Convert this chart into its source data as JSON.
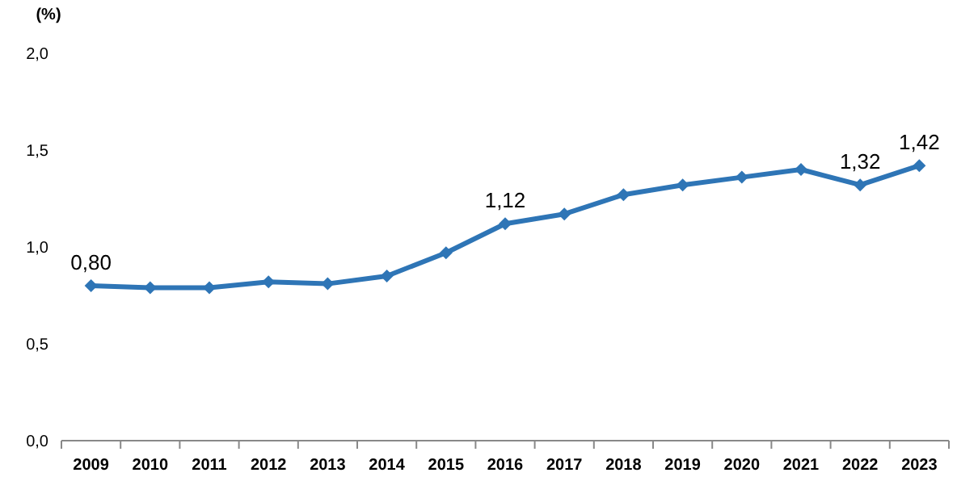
{
  "chart_data": {
    "type": "line",
    "ylabel": "(%)",
    "categories": [
      "2009",
      "2010",
      "2011",
      "2012",
      "2013",
      "2014",
      "2015",
      "2016",
      "2017",
      "2018",
      "2019",
      "2020",
      "2021",
      "2022",
      "2023"
    ],
    "series": [
      {
        "color": "#2e75b6",
        "values": [
          0.8,
          0.79,
          0.79,
          0.82,
          0.81,
          0.85,
          0.97,
          1.12,
          1.17,
          1.27,
          1.32,
          1.36,
          1.4,
          1.32,
          1.42
        ],
        "value_labels": [
          "0,80",
          null,
          null,
          null,
          null,
          null,
          null,
          "1,12",
          null,
          null,
          null,
          null,
          null,
          "1,32",
          "1,42"
        ]
      }
    ],
    "ylim": [
      0,
      2
    ],
    "yticks": [
      {
        "value": 0,
        "label": "0,0"
      },
      {
        "value": 0.5,
        "label": "0,5"
      },
      {
        "value": 1,
        "label": "1,0"
      },
      {
        "value": 1.5,
        "label": "1,5"
      },
      {
        "value": 2,
        "label": "2,0"
      }
    ],
    "grid": false,
    "marker": "diamond",
    "line_style": "solid"
  }
}
